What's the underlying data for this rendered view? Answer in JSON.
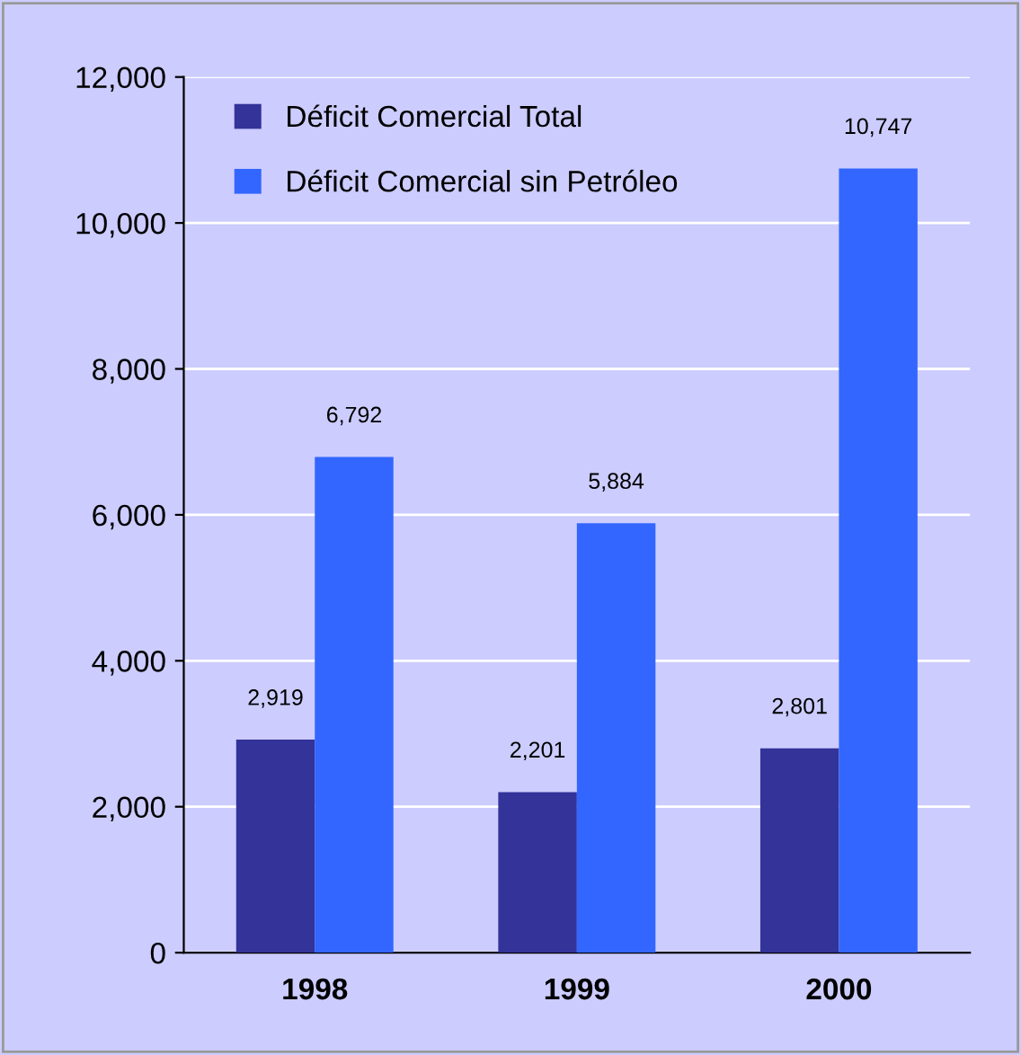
{
  "chart_data": {
    "type": "bar",
    "categories": [
      "1998",
      "1999",
      "2000"
    ],
    "series": [
      {
        "name": "Déficit Comercial Total",
        "color": "#333399",
        "values": [
          2919,
          2201,
          2801
        ],
        "value_labels": [
          "2,919",
          "2,201",
          "2,801"
        ]
      },
      {
        "name": "Déficit Comercial sin Petróleo",
        "color": "#3366ff",
        "values": [
          6792,
          5884,
          10747
        ],
        "value_labels": [
          "6,792",
          "5,884",
          "10,747"
        ]
      }
    ],
    "ylim": [
      0,
      12000
    ],
    "yticks": [
      {
        "value": 0,
        "label": "0"
      },
      {
        "value": 2000,
        "label": "2,000"
      },
      {
        "value": 4000,
        "label": "4,000"
      },
      {
        "value": 6000,
        "label": "6,000"
      },
      {
        "value": 8000,
        "label": "8,000"
      },
      {
        "value": 10000,
        "label": "10,000"
      },
      {
        "value": 12000,
        "label": "12,000"
      }
    ],
    "grid": "y",
    "legend": "top left"
  }
}
